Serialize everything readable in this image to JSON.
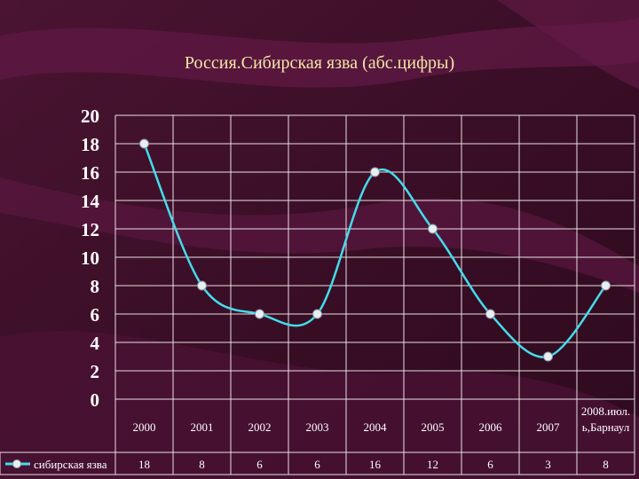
{
  "chart_data": {
    "type": "line",
    "title": "Россия.Сибирская язва  (абс.цифры)",
    "categories": [
      "2000",
      "2001",
      "2002",
      "2003",
      "2004",
      "2005",
      "2006",
      "2007",
      "2008.июл. ь,Барнаул"
    ],
    "category_lines": [
      [
        "2000"
      ],
      [
        "2001"
      ],
      [
        "2002"
      ],
      [
        "2003"
      ],
      [
        "2004"
      ],
      [
        "2005"
      ],
      [
        "2006"
      ],
      [
        "2007"
      ],
      [
        "2008.июл.",
        "ь,Барнаул"
      ]
    ],
    "series": [
      {
        "name": "сибирская язва",
        "values": [
          18,
          8,
          6,
          6,
          16,
          12,
          6,
          3,
          8
        ]
      }
    ],
    "table_values": [
      "18",
      "8",
      "6",
      "6",
      "16",
      "12",
      "6",
      "3",
      "8"
    ],
    "ylim": [
      0,
      20
    ],
    "yticks": [
      0,
      2,
      4,
      6,
      8,
      10,
      12,
      14,
      16,
      18,
      20
    ],
    "grid": true,
    "legend": "bottom-left data table",
    "colors": {
      "background": "#3a0f26",
      "wave": "#6e1b4c",
      "grid": "#e8e0e4",
      "axis_text": "#ffffff",
      "line": "#44dcec",
      "marker": "#e8eef2",
      "title": "#f2e6a8"
    }
  }
}
